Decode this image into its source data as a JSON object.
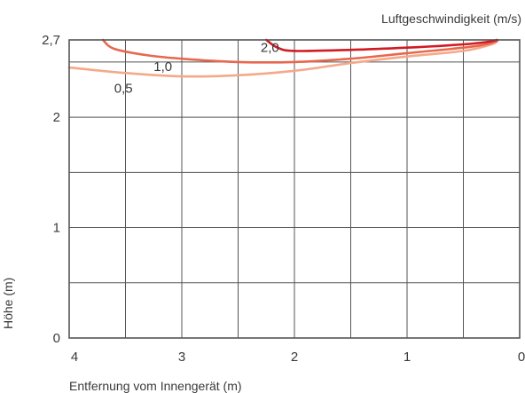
{
  "chart_data": {
    "type": "line",
    "title": "Luftgeschwindigkeit (m/s)",
    "xlabel": "Entfernung vom Innengerät (m)",
    "ylabel": "Höhe (m)",
    "xlim": [
      4,
      0
    ],
    "ylim": [
      0,
      2.7
    ],
    "x_ticks": [
      "4",
      "3",
      "2",
      "1",
      "0"
    ],
    "x_tick_values": [
      4,
      3,
      2,
      1,
      0
    ],
    "y_ticks": [
      "0",
      "1",
      "2",
      "2,7"
    ],
    "y_tick_values": [
      0,
      1,
      2,
      2.7
    ],
    "x_grid": [
      4,
      3.5,
      3,
      2.5,
      2,
      1.5,
      1,
      0.5,
      0
    ],
    "y_grid": [
      0,
      0.5,
      1,
      1.5,
      2,
      2.5,
      2.7
    ],
    "grid": true,
    "series": [
      {
        "name": "0,5",
        "label": "0,5",
        "color": "#f4a98a",
        "label_at": [
          3.6,
          2.22
        ],
        "points": [
          [
            4.0,
            2.45
          ],
          [
            3.5,
            2.4
          ],
          [
            3.0,
            2.37
          ],
          [
            2.5,
            2.38
          ],
          [
            2.0,
            2.42
          ],
          [
            1.5,
            2.49
          ],
          [
            1.0,
            2.55
          ],
          [
            0.5,
            2.6
          ],
          [
            0.25,
            2.66
          ],
          [
            0.2,
            2.69
          ]
        ]
      },
      {
        "name": "1,0",
        "label": "1,0",
        "color": "#e8674d",
        "label_at": [
          3.25,
          2.42
        ],
        "points": [
          [
            3.7,
            2.7
          ],
          [
            3.6,
            2.62
          ],
          [
            3.3,
            2.56
          ],
          [
            3.0,
            2.53
          ],
          [
            2.5,
            2.5
          ],
          [
            2.0,
            2.5
          ],
          [
            1.5,
            2.53
          ],
          [
            1.0,
            2.58
          ],
          [
            0.5,
            2.63
          ],
          [
            0.3,
            2.66
          ],
          [
            0.2,
            2.69
          ]
        ]
      },
      {
        "name": "2,0",
        "label": "2,0",
        "color": "#d11a22",
        "label_at": [
          2.3,
          2.59
        ],
        "points": [
          [
            2.25,
            2.7
          ],
          [
            2.15,
            2.63
          ],
          [
            2.0,
            2.6
          ],
          [
            1.5,
            2.61
          ],
          [
            1.0,
            2.63
          ],
          [
            0.5,
            2.66
          ],
          [
            0.3,
            2.68
          ],
          [
            0.2,
            2.7
          ]
        ]
      }
    ]
  }
}
